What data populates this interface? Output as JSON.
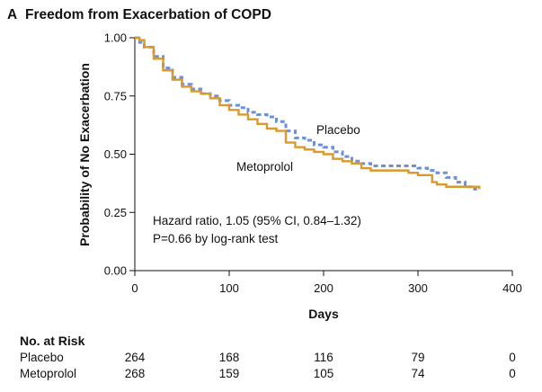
{
  "panel_label": "A",
  "title": "Freedom from Exacerbation of COPD",
  "chart_data": {
    "type": "line",
    "title": "Freedom from Exacerbation of COPD",
    "xlabel": "Days",
    "ylabel": "Probability of No Exacerbation",
    "xlim": [
      0,
      400
    ],
    "ylim": [
      0,
      1
    ],
    "x_ticks": [
      "0",
      "100",
      "200",
      "300",
      "400"
    ],
    "x_tick_values": [
      0,
      100,
      200,
      300,
      400
    ],
    "y_ticks": [
      "0.00",
      "0.25",
      "0.50",
      "0.75",
      "1.00"
    ],
    "y_tick_values": [
      0,
      0.25,
      0.5,
      0.75,
      1.0
    ],
    "series": [
      {
        "name": "Placebo",
        "color": "#6f8fd8",
        "style": "dashed",
        "x": [
          0,
          5,
          10,
          20,
          30,
          40,
          50,
          60,
          70,
          80,
          90,
          100,
          110,
          120,
          130,
          140,
          150,
          160,
          170,
          180,
          190,
          200,
          210,
          220,
          230,
          240,
          250,
          260,
          270,
          280,
          290,
          300,
          310,
          320,
          330,
          340,
          350,
          360,
          365
        ],
        "y": [
          1.0,
          0.98,
          0.96,
          0.92,
          0.87,
          0.83,
          0.8,
          0.78,
          0.76,
          0.75,
          0.73,
          0.71,
          0.7,
          0.68,
          0.67,
          0.66,
          0.64,
          0.6,
          0.57,
          0.56,
          0.54,
          0.53,
          0.51,
          0.49,
          0.47,
          0.46,
          0.45,
          0.45,
          0.45,
          0.45,
          0.45,
          0.44,
          0.43,
          0.42,
          0.4,
          0.38,
          0.36,
          0.35,
          0.35
        ]
      },
      {
        "name": "Metoprolol",
        "color": "#d99a2b",
        "style": "solid",
        "x": [
          0,
          5,
          10,
          20,
          30,
          40,
          50,
          60,
          70,
          80,
          90,
          100,
          110,
          120,
          130,
          140,
          150,
          160,
          170,
          180,
          190,
          200,
          210,
          220,
          230,
          240,
          250,
          260,
          270,
          280,
          290,
          300,
          310,
          315,
          320,
          330,
          340,
          350,
          360,
          365
        ],
        "y": [
          1.0,
          0.99,
          0.96,
          0.91,
          0.86,
          0.82,
          0.79,
          0.77,
          0.76,
          0.74,
          0.71,
          0.69,
          0.67,
          0.65,
          0.63,
          0.61,
          0.6,
          0.55,
          0.53,
          0.52,
          0.51,
          0.5,
          0.48,
          0.47,
          0.46,
          0.44,
          0.43,
          0.43,
          0.43,
          0.43,
          0.42,
          0.41,
          0.41,
          0.38,
          0.37,
          0.36,
          0.36,
          0.36,
          0.36,
          0.35
        ]
      }
    ],
    "series_labels": [
      "Placebo",
      "Metoprolol"
    ],
    "annotations": [
      "Hazard ratio, 1.05 (95% CI, 0.84–1.32)",
      "P=0.66 by log-rank test"
    ]
  },
  "risk_table": {
    "title": "No. at Risk",
    "rows": [
      {
        "label": "Placebo",
        "values": [
          "264",
          "168",
          "116",
          "79",
          "0"
        ]
      },
      {
        "label": "Metoprolol",
        "values": [
          "268",
          "159",
          "105",
          "74",
          "0"
        ]
      }
    ]
  }
}
